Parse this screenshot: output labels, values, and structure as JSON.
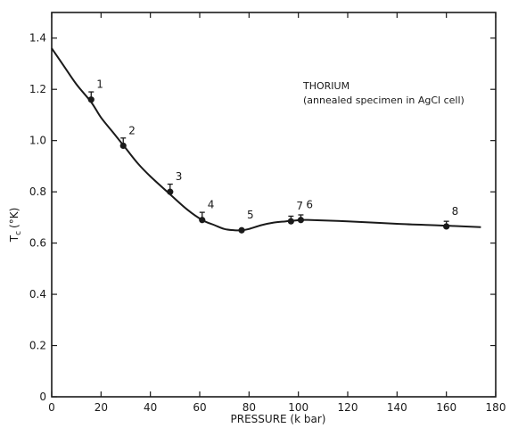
{
  "chart_data": {
    "type": "line",
    "xlabel": "PRESSURE (k bar)",
    "ylabel": "T",
    "ylabel_sub": "c",
    "ylabel_unit": "(°K)",
    "xlim": [
      0,
      180
    ],
    "ylim": [
      0,
      1.5
    ],
    "x_ticks": [
      0,
      20,
      40,
      60,
      80,
      100,
      120,
      140,
      160,
      180
    ],
    "y_ticks": [
      0,
      0.2,
      0.4,
      0.6,
      0.8,
      1.0,
      1.2,
      1.4
    ],
    "y_tick_labels": [
      "0",
      "0.2",
      "0.4",
      "0.6",
      "0.8",
      "1.0",
      "1.2",
      "1.4"
    ],
    "grid": false,
    "annotation": [
      "THORIUM",
      "(annealed specimen in AgCl  cell)"
    ],
    "curve": {
      "x": [
        0,
        5,
        10,
        16,
        20,
        25,
        30,
        35,
        40,
        48,
        55,
        61,
        66,
        70,
        74,
        77,
        80,
        85,
        90,
        95,
        101,
        105,
        120,
        140,
        160,
        174
      ],
      "y": [
        1.36,
        1.29,
        1.22,
        1.15,
        1.09,
        1.03,
        0.97,
        0.91,
        0.86,
        0.79,
        0.73,
        0.69,
        0.67,
        0.655,
        0.65,
        0.65,
        0.655,
        0.67,
        0.68,
        0.685,
        0.69,
        0.69,
        0.685,
        0.675,
        0.668,
        0.662
      ]
    },
    "points": [
      {
        "label": "1",
        "x": 16,
        "y": 1.16,
        "err_up": 0.03
      },
      {
        "label": "2",
        "x": 29,
        "y": 0.98,
        "err_up": 0.03
      },
      {
        "label": "3",
        "x": 48,
        "y": 0.8,
        "err_up": 0.03
      },
      {
        "label": "4",
        "x": 61,
        "y": 0.69,
        "err_up": 0.03
      },
      {
        "label": "5",
        "x": 77,
        "y": 0.65,
        "err_up": 0.0
      },
      {
        "label": "7",
        "x": 97,
        "y": 0.685,
        "err_up": 0.02
      },
      {
        "label": "6",
        "x": 101,
        "y": 0.69,
        "err_up": 0.02
      },
      {
        "label": "8",
        "x": 160,
        "y": 0.665,
        "err_up": 0.02
      }
    ]
  }
}
